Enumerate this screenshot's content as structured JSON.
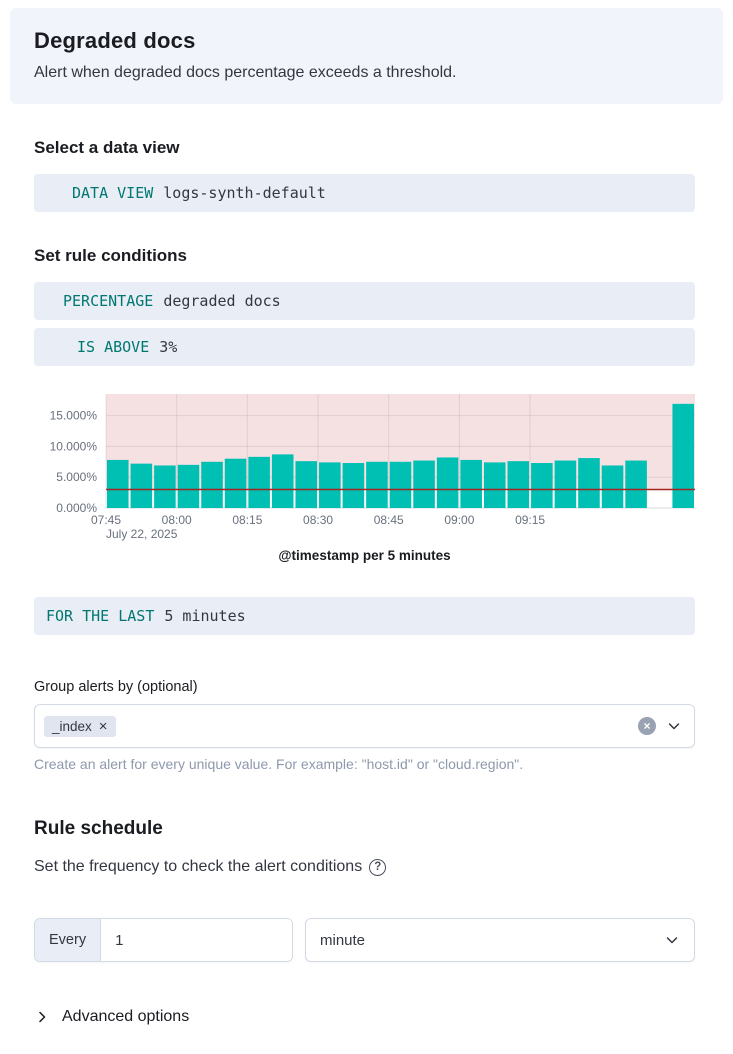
{
  "header": {
    "title": "Degraded docs",
    "subtitle": "Alert when degraded docs percentage exceeds a threshold."
  },
  "data_view": {
    "heading": "Select a data view",
    "expression": {
      "keyword": "DATA VIEW",
      "value": "logs-synth-default"
    }
  },
  "conditions": {
    "heading": "Set rule conditions",
    "percentage_expression": {
      "keyword": "PERCENTAGE",
      "value": "degraded docs"
    },
    "threshold_expression": {
      "keyword": "IS ABOVE",
      "value": "3%"
    },
    "window_expression": {
      "keyword": "FOR THE LAST",
      "value": "5 minutes"
    }
  },
  "chart_data": {
    "type": "bar",
    "title": "",
    "xlabel": "@timestamp per 5 minutes",
    "ylabel": "",
    "ylim": [
      0,
      18.5
    ],
    "y_ticks": [
      0,
      5,
      10,
      15
    ],
    "y_tick_labels": [
      "0.000%",
      "5.000%",
      "10.000%",
      "15.000%"
    ],
    "x_tick_labels": [
      "07:45",
      "08:00",
      "08:15",
      "08:30",
      "08:45",
      "09:00",
      "09:15"
    ],
    "x_axis_secondary_label": "July 22, 2025",
    "bar_interval_minutes": 5,
    "threshold": 3,
    "values": [
      7.8,
      7.2,
      6.9,
      7.0,
      7.5,
      8.0,
      8.3,
      8.7,
      7.6,
      7.4,
      7.3,
      7.5,
      7.5,
      7.7,
      8.2,
      7.8,
      7.4,
      7.6,
      7.3,
      7.7,
      8.1,
      6.9,
      7.7,
      0,
      16.9
    ],
    "bar_color": "#00BFB3",
    "threshold_region_color": "#F6E1E2",
    "threshold_line_color": "#A6251E",
    "grid": true,
    "legend": "none"
  },
  "group_by": {
    "label": "Group alerts by (optional)",
    "selected": [
      {
        "label": "_index"
      }
    ],
    "hint": "Create an alert for every unique value. For example: \"host.id\" or \"cloud.region\"."
  },
  "schedule": {
    "heading": "Rule schedule",
    "description": "Set the frequency to check the alert conditions",
    "every_label": "Every",
    "interval_value": "1",
    "unit_value": "minute"
  },
  "advanced": {
    "label": "Advanced options"
  },
  "colors": {
    "expression_keyword": "#007871",
    "expression_background": "#E9EDF5",
    "header_background": "#F1F4FA",
    "text_primary": "#343741"
  }
}
